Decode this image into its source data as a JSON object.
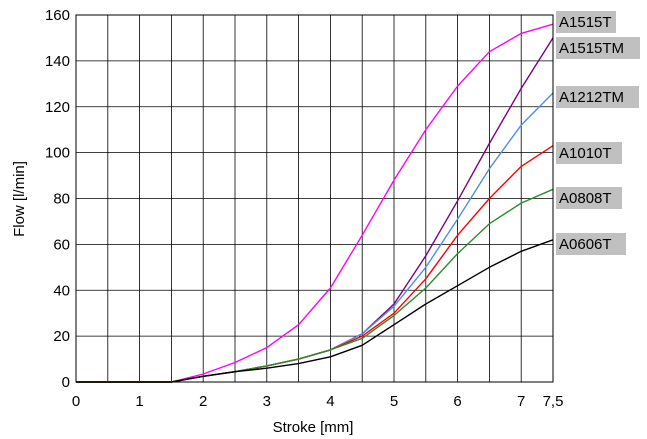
{
  "chart_data": {
    "type": "line",
    "xlabel": "Stroke [mm]",
    "ylabel": "Flow [l/min]",
    "xlim": [
      0,
      7.5
    ],
    "ylim": [
      0,
      160
    ],
    "grid": true,
    "x_ticks": [
      0,
      1,
      2,
      3,
      4,
      5,
      6,
      7,
      7.5
    ],
    "x_tick_labels": [
      "0",
      "1",
      "2",
      "3",
      "4",
      "5",
      "6",
      "7",
      "7,5"
    ],
    "x_gridlines": [
      0.5,
      1,
      1.5,
      2,
      2.5,
      3,
      3.5,
      4,
      4.5,
      5,
      5.5,
      6,
      6.5,
      7
    ],
    "y_ticks": [
      0,
      20,
      40,
      60,
      80,
      100,
      120,
      140,
      160
    ],
    "y_tick_labels": [
      "0",
      "20",
      "40",
      "60",
      "80",
      "100",
      "120",
      "140",
      "160"
    ],
    "x": [
      0,
      0.5,
      1,
      1.5,
      2,
      2.5,
      3,
      3.5,
      4,
      4.5,
      5,
      5.5,
      6,
      6.5,
      7,
      7.5
    ],
    "series": [
      {
        "name": "A1515T",
        "color": "#ff00ff",
        "values": [
          0,
          0,
          0,
          0,
          3.5,
          8.5,
          15,
          25,
          41,
          64,
          88,
          110,
          129,
          144,
          152,
          156
        ]
      },
      {
        "name": "A1515TM",
        "color": "#800080",
        "values": [
          0,
          0,
          0,
          0,
          2.5,
          4.5,
          7,
          10,
          14,
          21,
          34,
          55,
          79,
          104,
          128,
          150
        ]
      },
      {
        "name": "A1212TM",
        "color": "#4f8fe6",
        "values": [
          0,
          0,
          0,
          0,
          2.5,
          4.5,
          7,
          10,
          14,
          21,
          33,
          50,
          71,
          93,
          112,
          126
        ]
      },
      {
        "name": "A1010T",
        "color": "#ff0000",
        "values": [
          0,
          0,
          0,
          0,
          2.5,
          4.5,
          7,
          10,
          14,
          20,
          30,
          45,
          64,
          80,
          94,
          103
        ]
      },
      {
        "name": "A0808T",
        "color": "#2e8b2e",
        "values": [
          0,
          0,
          0,
          0,
          2.5,
          4.5,
          7,
          10,
          14,
          19,
          29,
          41,
          56,
          69,
          78,
          84
        ]
      },
      {
        "name": "A0606T",
        "color": "#000000",
        "values": [
          0,
          0,
          0,
          0,
          2.5,
          4.5,
          6,
          8,
          11,
          16,
          25,
          34,
          42,
          50,
          57,
          62
        ]
      }
    ]
  }
}
